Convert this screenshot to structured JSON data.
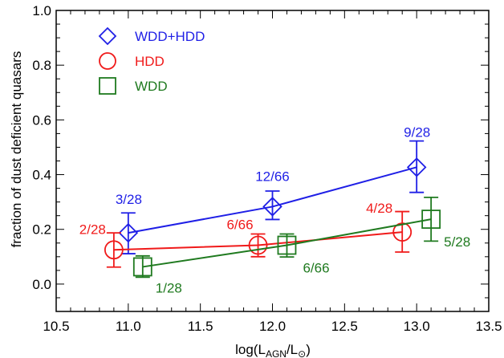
{
  "chart_data": {
    "type": "scatter",
    "xlabel": {
      "pre": "log(L",
      "sub1": "AGN",
      "mid": "/L",
      "sub2": "⊙",
      "post": ")"
    },
    "ylabel": "fraction of dust deficient quasars",
    "xlim": [
      10.5,
      13.5
    ],
    "ylim": [
      -0.1,
      1.0
    ],
    "xticks": [
      10.5,
      11.0,
      11.5,
      12.0,
      12.5,
      13.0,
      13.5
    ],
    "xtick_labels": [
      "10.5",
      "11.0",
      "11.5",
      "12.0",
      "12.5",
      "13.0",
      "13.5"
    ],
    "yticks": [
      0.0,
      0.2,
      0.4,
      0.6,
      0.8,
      1.0
    ],
    "ytick_labels": [
      "0.0",
      "0.2",
      "0.4",
      "0.6",
      "0.8",
      "1.0"
    ],
    "grid": false,
    "legend_position": "top-left",
    "series": [
      {
        "name": "WDD+HDD",
        "marker": "diamond",
        "color": "#1f1fe6",
        "points": [
          {
            "x": 11.0,
            "y": 0.187,
            "err_lo": 0.076,
            "err_hi": 0.073,
            "label": "3/28"
          },
          {
            "x": 12.0,
            "y": 0.283,
            "err_lo": 0.047,
            "err_hi": 0.057,
            "label": "12/66"
          },
          {
            "x": 13.0,
            "y": 0.427,
            "err_lo": 0.092,
            "err_hi": 0.096,
            "label": "9/28"
          }
        ]
      },
      {
        "name": "HDD",
        "marker": "circle",
        "color": "#f01a1a",
        "points": [
          {
            "x": 10.9,
            "y": 0.125,
            "err_lo": 0.063,
            "err_hi": 0.062,
            "label": "2/28"
          },
          {
            "x": 11.9,
            "y": 0.142,
            "err_lo": 0.042,
            "err_hi": 0.041,
            "label": "6/66"
          },
          {
            "x": 12.9,
            "y": 0.19,
            "err_lo": 0.073,
            "err_hi": 0.075,
            "label": "4/28"
          }
        ]
      },
      {
        "name": "WDD",
        "marker": "square",
        "color": "#1f7a1f",
        "points": [
          {
            "x": 11.1,
            "y": 0.063,
            "err_lo": 0.038,
            "err_hi": 0.04,
            "label": "1/28"
          },
          {
            "x": 12.1,
            "y": 0.142,
            "err_lo": 0.043,
            "err_hi": 0.041,
            "label": "6/66"
          },
          {
            "x": 13.1,
            "y": 0.237,
            "err_lo": 0.08,
            "err_hi": 0.08,
            "label": "5/28"
          }
        ]
      }
    ]
  }
}
